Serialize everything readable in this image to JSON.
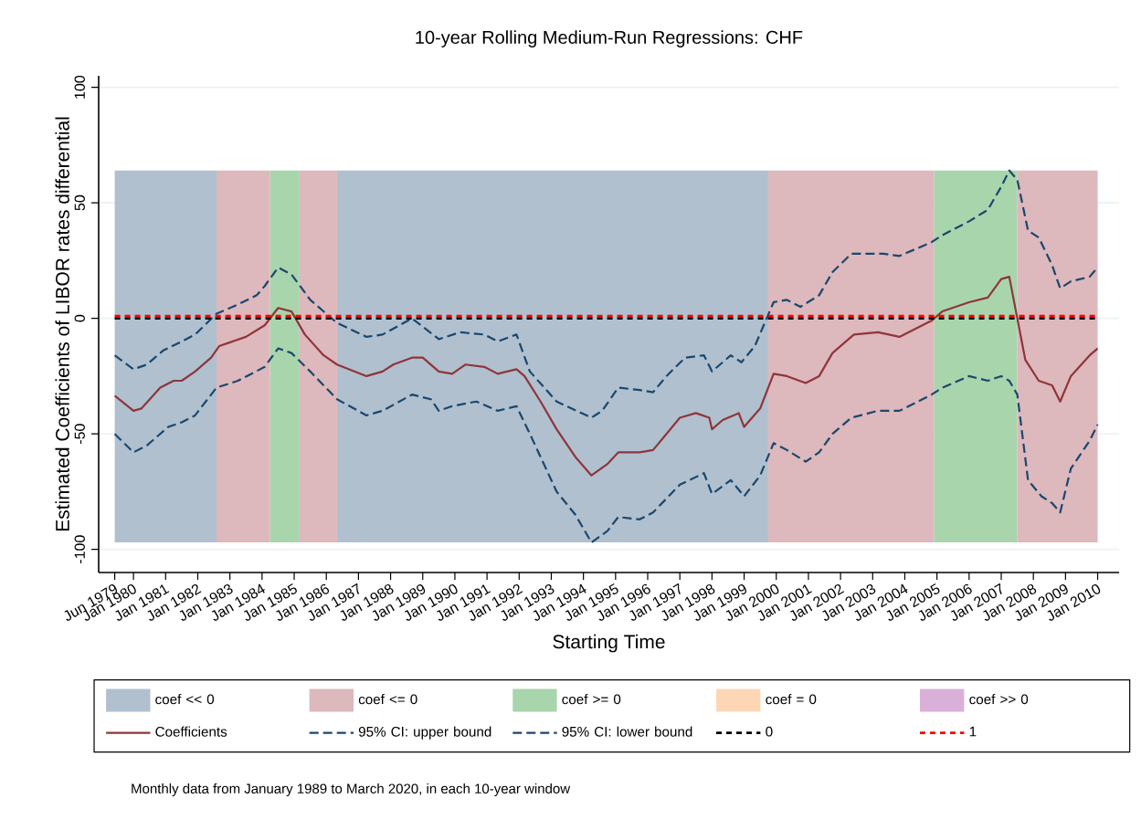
{
  "chart_data": {
    "type": "line",
    "title": "10-year Rolling Medium-Run Regressions: CHF",
    "xlabel": "Starting Time",
    "ylabel": "Estimated Coefficients of LIBOR rates differential",
    "annotations": [
      "Monthly data from January 1989 to March 2020, in each 10-year window"
    ],
    "xlim": [
      "1978-12",
      "2010-09"
    ],
    "ylim": [
      -110,
      105
    ],
    "yticks": [
      -100,
      -50,
      0,
      50,
      100
    ],
    "xticks": [
      {
        "value": "1979-06",
        "label": "Jun 1979"
      },
      {
        "value": "1980-01",
        "label": "Jan 1980"
      },
      {
        "value": "1981-01",
        "label": "Jan 1981"
      },
      {
        "value": "1982-01",
        "label": "Jan 1982"
      },
      {
        "value": "1983-01",
        "label": "Jan 1983"
      },
      {
        "value": "1984-01",
        "label": "Jan 1984"
      },
      {
        "value": "1985-01",
        "label": "Jan 1985"
      },
      {
        "value": "1986-01",
        "label": "Jan 1986"
      },
      {
        "value": "1987-01",
        "label": "Jan 1987"
      },
      {
        "value": "1988-01",
        "label": "Jan 1988"
      },
      {
        "value": "1989-01",
        "label": "Jan 1989"
      },
      {
        "value": "1990-01",
        "label": "Jan 1990"
      },
      {
        "value": "1991-01",
        "label": "Jan 1991"
      },
      {
        "value": "1992-01",
        "label": "Jan 1992"
      },
      {
        "value": "1993-01",
        "label": "Jan 1993"
      },
      {
        "value": "1994-01",
        "label": "Jan 1994"
      },
      {
        "value": "1995-01",
        "label": "Jan 1995"
      },
      {
        "value": "1996-01",
        "label": "Jan 1996"
      },
      {
        "value": "1997-01",
        "label": "Jan 1997"
      },
      {
        "value": "1998-01",
        "label": "Jan 1998"
      },
      {
        "value": "1999-01",
        "label": "Jan 1999"
      },
      {
        "value": "2000-01",
        "label": "Jan 2000"
      },
      {
        "value": "2001-01",
        "label": "Jan 2001"
      },
      {
        "value": "2002-01",
        "label": "Jan 2002"
      },
      {
        "value": "2003-01",
        "label": "Jan 2003"
      },
      {
        "value": "2004-01",
        "label": "Jan 2004"
      },
      {
        "value": "2005-01",
        "label": "Jan 2005"
      },
      {
        "value": "2006-01",
        "label": "Jan 2006"
      },
      {
        "value": "2007-01",
        "label": "Jan 2007"
      },
      {
        "value": "2008-01",
        "label": "Jan 2008"
      },
      {
        "value": "2009-01",
        "label": "Jan 2009"
      },
      {
        "value": "2010-01",
        "label": "Jan 2010"
      }
    ],
    "grid": "y",
    "legend": "bottom",
    "marker": "none",
    "bands": [
      {
        "axis": "x",
        "from": "1979-06",
        "to": "1982-08",
        "label": "coef << 0",
        "color": "#b0c0ce"
      },
      {
        "axis": "x",
        "from": "1986-05",
        "to": "1999-10",
        "color": "#b0c0ce"
      },
      {
        "axis": "x",
        "from": "1982-08",
        "to": "1984-04",
        "label": "coef <= 0",
        "color": "#ddb8bc"
      },
      {
        "axis": "x",
        "from": "1985-03",
        "to": "1986-05",
        "color": "#ddb8bc"
      },
      {
        "axis": "x",
        "from": "1999-10",
        "to": "2004-12",
        "color": "#ddb8bc"
      },
      {
        "axis": "x",
        "from": "2007-07",
        "to": "2010-01",
        "color": "#ddb8bc"
      },
      {
        "axis": "x",
        "from": "1984-04",
        "to": "1985-03",
        "label": "coef >= 0",
        "color": "#a9d5ac"
      },
      {
        "axis": "x",
        "from": "2004-12",
        "to": "2007-07",
        "color": "#a9d5ac"
      }
    ],
    "ref_lines": [
      {
        "axis": "y",
        "value": 0,
        "label": "0",
        "color": "#000000",
        "line_style": "dashed"
      },
      {
        "axis": "y",
        "value": 1,
        "label": "1",
        "color": "#ff0000",
        "line_style": "dashed"
      }
    ],
    "series": [
      {
        "name": "coef = 0",
        "type": "area",
        "color": "#fdd7b5"
      },
      {
        "name": "coef >> 0",
        "type": "area",
        "color": "#dab0d8"
      },
      {
        "name": "Coefficients",
        "color": "#90353b",
        "line_style": "solid",
        "x": [
          "1979-06",
          "1980-01",
          "1980-04",
          "1980-11",
          "1981-04",
          "1981-07",
          "1981-12",
          "1982-06",
          "1982-09",
          "1983-07",
          "1984-02",
          "1984-07",
          "1984-12",
          "1985-05",
          "1985-12",
          "1986-05",
          "1987-04",
          "1987-10",
          "1988-02",
          "1988-09",
          "1989-01",
          "1989-07",
          "1989-12",
          "1990-05",
          "1990-12",
          "1991-05",
          "1991-12",
          "1992-03",
          "1992-09",
          "1993-03",
          "1993-10",
          "1994-04",
          "1994-10",
          "1995-02",
          "1995-10",
          "1996-03",
          "1996-08",
          "1997-01",
          "1997-07",
          "1997-12",
          "1998-01",
          "1998-05",
          "1998-11",
          "1999-01",
          "1999-07",
          "1999-12",
          "2000-05",
          "2000-12",
          "2001-05",
          "2001-10",
          "2002-06",
          "2003-03",
          "2003-11",
          "2004-11",
          "2005-03",
          "2006-01",
          "2006-08",
          "2007-01",
          "2007-04",
          "2007-07",
          "2007-10",
          "2008-03",
          "2008-08",
          "2008-11",
          "2009-03",
          "2009-10",
          "2010-01"
        ],
        "values": [
          -33.5,
          -40,
          -39,
          -30,
          -27,
          -27,
          -23,
          -17,
          -12,
          -8,
          -3,
          4.5,
          3,
          -7,
          -16,
          -20,
          -25,
          -23,
          -20,
          -17,
          -17,
          -23,
          -24,
          -20,
          -21,
          -24,
          -22,
          -25,
          -36,
          -48,
          -60,
          -68,
          -63,
          -58,
          -58,
          -57,
          -50,
          -43,
          -41,
          -43,
          -48,
          -44,
          -41,
          -47,
          -39,
          -24,
          -25,
          -28,
          -25,
          -15,
          -7,
          -6,
          -8,
          -1,
          3,
          7,
          9,
          17,
          18,
          0,
          -18,
          -27,
          -29,
          -36,
          -25,
          -16,
          -13
        ]
      },
      {
        "name": "95% CI: upper bound",
        "color": "#1a476f",
        "line_style": "dashed",
        "x": [
          "1979-06",
          "1980-01",
          "1980-06",
          "1980-12",
          "1981-07",
          "1981-12",
          "1982-08",
          "1983-04",
          "1983-11",
          "1984-02",
          "1984-07",
          "1984-12",
          "1985-07",
          "1986-05",
          "1987-04",
          "1987-10",
          "1988-09",
          "1989-07",
          "1990-03",
          "1990-12",
          "1991-05",
          "1991-12",
          "1992-05",
          "1993-03",
          "1994-04",
          "1994-08",
          "1995-02",
          "1995-10",
          "1996-03",
          "1996-08",
          "1997-03",
          "1997-10",
          "1998-01",
          "1998-08",
          "1998-12",
          "1999-05",
          "1999-12",
          "2000-05",
          "2000-10",
          "2001-05",
          "2001-10",
          "2002-05",
          "2003-05",
          "2003-11",
          "2004-11",
          "2005-03",
          "2006-01",
          "2006-08",
          "2007-01",
          "2007-04",
          "2007-07",
          "2007-11",
          "2008-03",
          "2008-08",
          "2008-11",
          "2009-03",
          "2009-10",
          "2010-01"
        ],
        "values": [
          -16,
          -22,
          -20,
          -14,
          -10,
          -7,
          2,
          6,
          10,
          14,
          22,
          19,
          8,
          -2,
          -8,
          -7,
          0,
          -9,
          -6,
          -7,
          -10,
          -7,
          -23,
          -36,
          -43,
          -40,
          -30,
          -31,
          -32,
          -25,
          -17,
          -16,
          -23,
          -16,
          -19,
          -12,
          7,
          8,
          5,
          10,
          20,
          28,
          28,
          27,
          33,
          36,
          42,
          47,
          57,
          64,
          60,
          38,
          35,
          23,
          13,
          16,
          18,
          22
        ]
      },
      {
        "name": "95% CI: lower bound",
        "color": "#1a476f",
        "line_style": "dashed",
        "x": [
          "1979-06",
          "1980-01",
          "1980-06",
          "1981-02",
          "1981-07",
          "1981-12",
          "1982-08",
          "1983-04",
          "1984-02",
          "1984-07",
          "1984-12",
          "1985-07",
          "1986-05",
          "1987-04",
          "1987-10",
          "1988-09",
          "1989-04",
          "1989-07",
          "1989-12",
          "1990-09",
          "1991-05",
          "1991-12",
          "1992-05",
          "1993-03",
          "1993-10",
          "1994-04",
          "1994-10",
          "1995-02",
          "1995-10",
          "1996-03",
          "1997-01",
          "1997-10",
          "1998-01",
          "1998-08",
          "1999-01",
          "1999-07",
          "1999-12",
          "2000-05",
          "2000-12",
          "2001-05",
          "2001-10",
          "2002-05",
          "2003-03",
          "2003-11",
          "2004-11",
          "2005-03",
          "2006-01",
          "2006-08",
          "2007-01",
          "2007-04",
          "2007-07",
          "2007-11",
          "2008-04",
          "2008-08",
          "2008-11",
          "2009-03",
          "2009-10",
          "2010-01"
        ],
        "values": [
          -50,
          -58,
          -55,
          -47,
          -45,
          -42,
          -30,
          -27,
          -21,
          -13,
          -15,
          -23,
          -35,
          -42,
          -40,
          -33,
          -35,
          -40,
          -38,
          -36,
          -40,
          -38,
          -50,
          -75,
          -85,
          -97,
          -92,
          -86,
          -87,
          -84,
          -72,
          -67,
          -76,
          -70,
          -77,
          -68,
          -54,
          -57,
          -62,
          -58,
          -50,
          -43,
          -40,
          -40,
          -33,
          -30,
          -25,
          -27,
          -25,
          -27,
          -33,
          -70,
          -77,
          -80,
          -84,
          -65,
          -53,
          -46
        ]
      }
    ]
  }
}
